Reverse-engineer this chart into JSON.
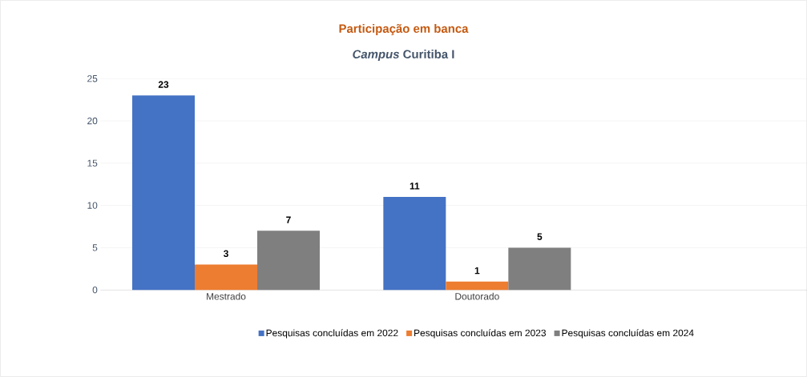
{
  "chart_data": {
    "type": "bar",
    "title": "Participação em banca",
    "subtitle": "*Campus* Curitiba I",
    "categories": [
      "Mestrado",
      "Doutorado",
      null
    ],
    "series": [
      {
        "name": "Pesquisas concluídas em 2022",
        "color": "#4472c4",
        "values": [
          23,
          11,
          null
        ]
      },
      {
        "name": "Pesquisas concluídas em 2023",
        "color": "#ed7d31",
        "values": [
          3,
          1,
          null
        ]
      },
      {
        "name": "Pesquisas concluídas em 2024",
        "color": "#7f7f7f",
        "values": [
          7,
          5,
          null
        ]
      }
    ],
    "ylim": [
      0,
      25
    ],
    "yticks": [
      0,
      5,
      10,
      15,
      20,
      25
    ],
    "grid": "y",
    "legend": "bottom",
    "data_labels": true
  }
}
